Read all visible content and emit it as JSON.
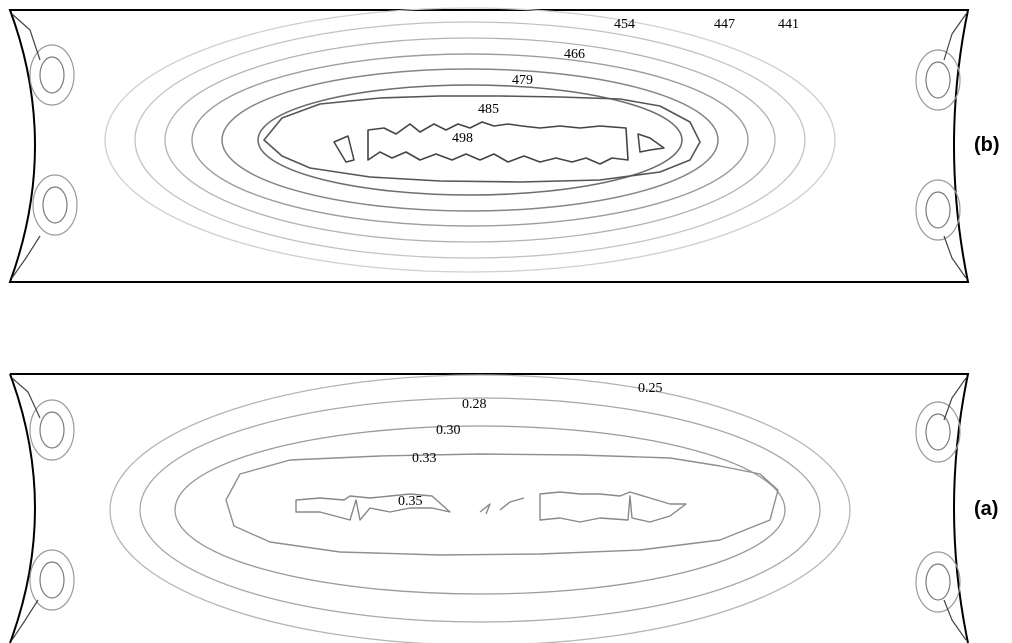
{
  "panels": [
    {
      "id": "b",
      "tag": "(b)",
      "labels": [
        "454",
        "447",
        "441",
        "466",
        "479",
        "485",
        "498"
      ]
    },
    {
      "id": "a",
      "tag": "(a)",
      "labels": [
        "0.25",
        "0.28",
        "0.30",
        "0.33",
        "0.35"
      ]
    }
  ],
  "colors": {
    "outline": "#000000",
    "contour_light": "#bdbdbd",
    "contour_mid": "#8c8c8c",
    "contour_dark": "#555555"
  }
}
